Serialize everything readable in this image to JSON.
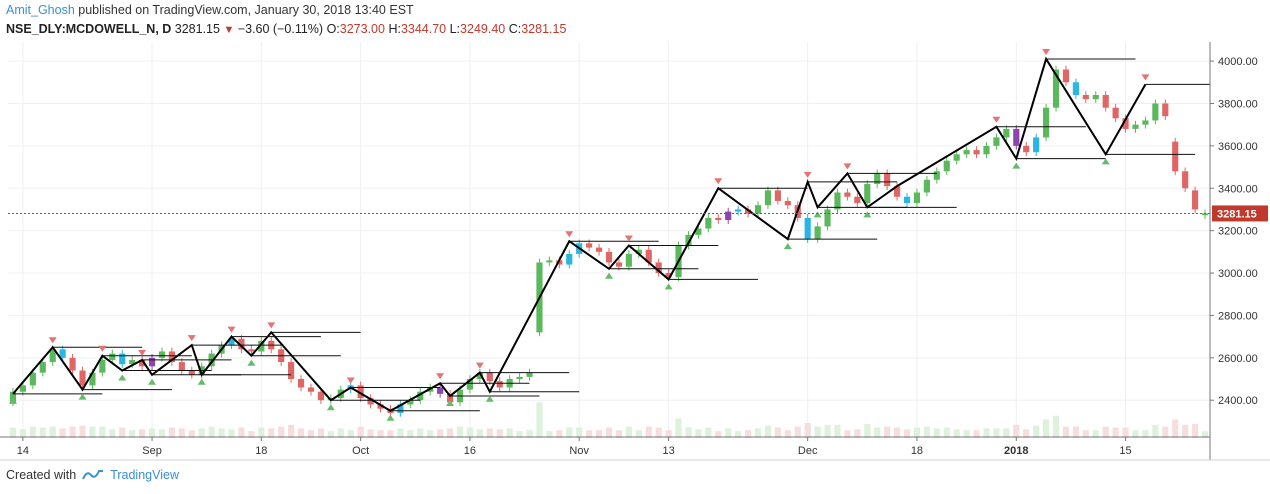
{
  "header": {
    "author": "Amit_Ghosh",
    "published_text": "published on TradingView.com, January 30, 2018 13:40 EST"
  },
  "symbol_line": {
    "symbol": "NSE_DLY:MCDOWELL_N, D",
    "last": "3281.15",
    "change": "−3.60 (−0.11%)",
    "open_label": "O:",
    "open": "3273.00",
    "high_label": "H:",
    "high": "3344.70",
    "low_label": "L:",
    "low": "3249.40",
    "close_label": "C:",
    "close": "3281.15"
  },
  "footer": {
    "created_with": "Created with",
    "brand": "TradingView"
  },
  "colors": {
    "up": "#5cb85c",
    "down": "#e06666",
    "cyan": "#29b6e3",
    "purple": "#8e44ad",
    "zigzag": "#000000",
    "price_line": "#c0392b"
  },
  "chart_data": {
    "type": "candlestick",
    "y_axis": {
      "min": 2250,
      "max": 4090,
      "ticks": [
        2400,
        2600,
        2800,
        3000,
        3200,
        3400,
        3600,
        3800,
        4000
      ],
      "tick_labels": [
        "2400.00",
        "2600.00",
        "2800.00",
        "3000.00",
        "3200.00",
        "3400.00",
        "3600.00",
        "3800.00",
        "4000.00"
      ],
      "position": "right"
    },
    "x_axis": {
      "labels": [
        {
          "label": "14",
          "i": 1
        },
        {
          "label": "Sep",
          "i": 14
        },
        {
          "label": "18",
          "i": 25
        },
        {
          "label": "Oct",
          "i": 35
        },
        {
          "label": "16",
          "i": 46
        },
        {
          "label": "Nov",
          "i": 57
        },
        {
          "label": "13",
          "i": 66
        },
        {
          "label": "Dec",
          "i": 80
        },
        {
          "label": "18",
          "i": 91
        },
        {
          "label": "2018",
          "i": 101
        },
        {
          "label": "15",
          "i": 112
        }
      ]
    },
    "last_price": {
      "label": "3281.15",
      "value": 3281.15
    },
    "candles": [
      [
        2390,
        2440
      ],
      [
        2440,
        2470
      ],
      [
        2470,
        2530
      ],
      [
        2530,
        2580
      ],
      [
        2580,
        2640
      ],
      [
        2640,
        2600
      ],
      [
        2600,
        2540
      ],
      [
        2540,
        2470
      ],
      [
        2470,
        2530
      ],
      [
        2530,
        2590
      ],
      [
        2590,
        2620
      ],
      [
        2620,
        2570
      ],
      [
        2570,
        2590
      ],
      [
        2590,
        2560
      ],
      [
        2560,
        2600
      ],
      [
        2600,
        2630
      ],
      [
        2630,
        2580
      ],
      [
        2580,
        2540
      ],
      [
        2540,
        2520
      ],
      [
        2520,
        2560
      ],
      [
        2560,
        2620
      ],
      [
        2620,
        2660
      ],
      [
        2660,
        2690
      ],
      [
        2690,
        2640
      ],
      [
        2640,
        2630
      ],
      [
        2630,
        2680
      ],
      [
        2680,
        2640
      ],
      [
        2640,
        2580
      ],
      [
        2580,
        2500
      ],
      [
        2500,
        2460
      ],
      [
        2460,
        2440
      ],
      [
        2440,
        2400
      ],
      [
        2400,
        2410
      ],
      [
        2410,
        2450
      ],
      [
        2450,
        2470
      ],
      [
        2470,
        2410
      ],
      [
        2410,
        2380
      ],
      [
        2380,
        2360
      ],
      [
        2360,
        2340
      ],
      [
        2340,
        2380
      ],
      [
        2380,
        2400
      ],
      [
        2400,
        2440
      ],
      [
        2440,
        2460
      ],
      [
        2460,
        2430
      ],
      [
        2430,
        2390
      ],
      [
        2390,
        2450
      ],
      [
        2450,
        2500
      ],
      [
        2500,
        2530
      ],
      [
        2530,
        2490
      ],
      [
        2490,
        2460
      ],
      [
        2460,
        2500
      ],
      [
        2500,
        2510
      ],
      [
        2510,
        2530
      ],
      [
        2720,
        3050
      ],
      [
        3050,
        3060
      ],
      [
        3060,
        3040
      ],
      [
        3040,
        3090
      ],
      [
        3090,
        3140
      ],
      [
        3140,
        3120
      ],
      [
        3120,
        3100
      ],
      [
        3100,
        3050
      ],
      [
        3050,
        3030
      ],
      [
        3030,
        3090
      ],
      [
        3090,
        3110
      ],
      [
        3110,
        3050
      ],
      [
        3050,
        3000
      ],
      [
        3000,
        2980
      ],
      [
        2980,
        3130
      ],
      [
        3130,
        3180
      ],
      [
        3180,
        3210
      ],
      [
        3210,
        3260
      ],
      [
        3260,
        3250
      ],
      [
        3250,
        3290
      ],
      [
        3290,
        3300
      ],
      [
        3300,
        3280
      ],
      [
        3280,
        3320
      ],
      [
        3320,
        3390
      ],
      [
        3390,
        3340
      ],
      [
        3340,
        3320
      ],
      [
        3320,
        3260
      ],
      [
        3260,
        3160
      ],
      [
        3160,
        3220
      ],
      [
        3220,
        3300
      ],
      [
        3300,
        3380
      ],
      [
        3380,
        3360
      ],
      [
        3360,
        3330
      ],
      [
        3330,
        3420
      ],
      [
        3420,
        3470
      ],
      [
        3470,
        3410
      ],
      [
        3410,
        3360
      ],
      [
        3360,
        3330
      ],
      [
        3330,
        3380
      ],
      [
        3380,
        3440
      ],
      [
        3440,
        3480
      ],
      [
        3480,
        3530
      ],
      [
        3530,
        3560
      ],
      [
        3560,
        3580
      ],
      [
        3580,
        3560
      ],
      [
        3560,
        3600
      ],
      [
        3600,
        3640
      ],
      [
        3640,
        3680
      ],
      [
        3680,
        3600
      ],
      [
        3600,
        3570
      ],
      [
        3570,
        3640
      ],
      [
        3640,
        3780
      ],
      [
        3780,
        3960
      ],
      [
        3960,
        3900
      ],
      [
        3900,
        3840
      ],
      [
        3840,
        3820
      ],
      [
        3820,
        3840
      ],
      [
        3840,
        3780
      ],
      [
        3780,
        3730
      ],
      [
        3730,
        3680
      ],
      [
        3680,
        3700
      ],
      [
        3700,
        3720
      ],
      [
        3720,
        3800
      ],
      [
        3800,
        3740
      ],
      [
        3620,
        3480
      ],
      [
        3480,
        3400
      ],
      [
        3390,
        3300
      ],
      [
        3273,
        3281.15
      ]
    ],
    "zigzag": [
      [
        0,
        2430
      ],
      [
        4,
        2650
      ],
      [
        7,
        2450
      ],
      [
        9,
        2610
      ],
      [
        11,
        2540
      ],
      [
        13,
        2590
      ],
      [
        14,
        2520
      ],
      [
        18,
        2660
      ],
      [
        19,
        2520
      ],
      [
        22,
        2700
      ],
      [
        24,
        2610
      ],
      [
        26,
        2720
      ],
      [
        32,
        2400
      ],
      [
        34,
        2460
      ],
      [
        38,
        2350
      ],
      [
        43,
        2480
      ],
      [
        44,
        2420
      ],
      [
        47,
        2530
      ],
      [
        48,
        2440
      ],
      [
        56,
        3150
      ],
      [
        60,
        3020
      ],
      [
        62,
        3130
      ],
      [
        66,
        2970
      ],
      [
        71,
        3400
      ],
      [
        78,
        3160
      ],
      [
        80,
        3430
      ],
      [
        81,
        3310
      ],
      [
        84,
        3470
      ],
      [
        86,
        3310
      ],
      [
        89,
        3410
      ],
      [
        99,
        3690
      ],
      [
        101,
        3540
      ],
      [
        104,
        4010
      ],
      [
        110,
        3560
      ],
      [
        114,
        3890
      ]
    ]
  }
}
